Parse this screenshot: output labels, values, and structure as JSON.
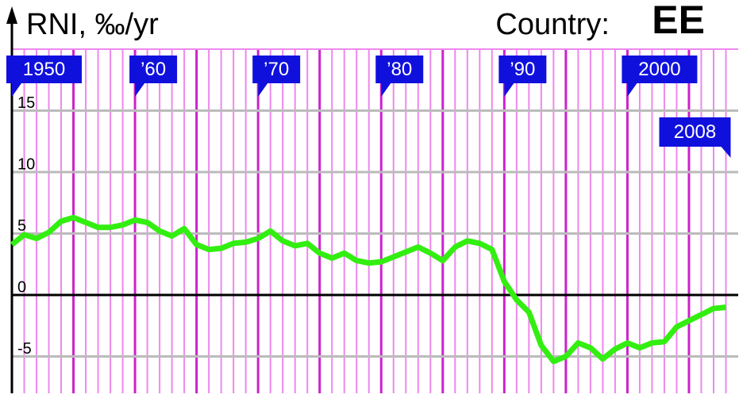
{
  "chart_data": {
    "type": "line",
    "title": "RNI, ‰/yr",
    "country_label": "Country:",
    "country": "EE",
    "x": [
      1950,
      1951,
      1952,
      1953,
      1954,
      1955,
      1956,
      1957,
      1958,
      1959,
      1960,
      1961,
      1962,
      1963,
      1964,
      1965,
      1966,
      1967,
      1968,
      1969,
      1970,
      1971,
      1972,
      1973,
      1974,
      1975,
      1976,
      1977,
      1978,
      1979,
      1980,
      1981,
      1982,
      1983,
      1984,
      1985,
      1986,
      1987,
      1988,
      1989,
      1990,
      1991,
      1992,
      1993,
      1994,
      1995,
      1996,
      1997,
      1998,
      1999,
      2000,
      2001,
      2002,
      2003,
      2004,
      2005,
      2006,
      2007,
      2008
    ],
    "series": [
      {
        "color": "#33ee11",
        "values": [
          4.1,
          4.9,
          4.6,
          5.1,
          6.0,
          6.3,
          5.9,
          5.5,
          5.5,
          5.7,
          6.1,
          5.9,
          5.2,
          4.8,
          5.4,
          4.1,
          3.7,
          3.8,
          4.2,
          4.3,
          4.6,
          5.2,
          4.4,
          4.0,
          4.2,
          3.4,
          3.0,
          3.4,
          2.8,
          2.6,
          2.7,
          3.1,
          3.5,
          3.9,
          3.4,
          2.8,
          3.9,
          4.4,
          4.2,
          3.7,
          1.1,
          -0.4,
          -1.4,
          -4.1,
          -5.4,
          -5.0,
          -3.9,
          -4.3,
          -5.2,
          -4.4,
          -3.9,
          -4.3,
          -3.9,
          -3.8,
          -2.6,
          -2.1,
          -1.6,
          -1.1,
          -1.0
        ]
      }
    ],
    "xlim": [
      1950,
      2009
    ],
    "ylim": [
      -8,
      20
    ],
    "xticks": [
      {
        "value": 1950,
        "label": "1950"
      },
      {
        "value": 1960,
        "label": "’60"
      },
      {
        "value": 1970,
        "label": "’70"
      },
      {
        "value": 1980,
        "label": "’80"
      },
      {
        "value": 1990,
        "label": "’90"
      },
      {
        "value": 2000,
        "label": "2000"
      },
      {
        "value": 2008,
        "label": "2008"
      }
    ],
    "yticks": [
      -5,
      0,
      5,
      10,
      15
    ],
    "grid": true
  }
}
